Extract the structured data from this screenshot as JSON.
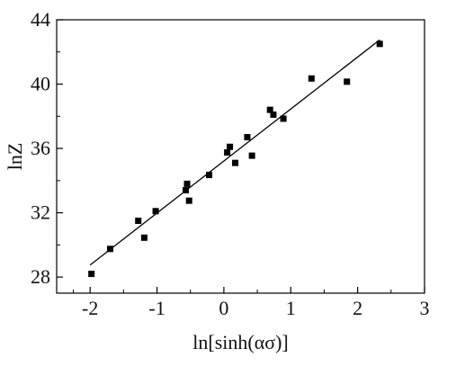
{
  "chart_data": {
    "type": "scatter",
    "xlabel": "ln[sinh(ασ)]",
    "ylabel": "lnZ",
    "xlim": [
      -2.5,
      3
    ],
    "ylim": [
      27,
      44
    ],
    "x_ticks": [
      -2,
      -1,
      0,
      1,
      2,
      3
    ],
    "x_tick_labels": [
      "-2",
      "-1",
      "0",
      "1",
      "2",
      "3"
    ],
    "y_ticks": [
      28,
      32,
      36,
      40,
      44
    ],
    "y_tick_labels": [
      "28",
      "32",
      "36",
      "40",
      "44"
    ],
    "grid": false,
    "legend": "none",
    "series": [
      {
        "marker": "square",
        "color": "#000000",
        "points": [
          {
            "x": -1.98,
            "y": 28.2
          },
          {
            "x": -1.7,
            "y": 29.75
          },
          {
            "x": -1.28,
            "y": 31.5
          },
          {
            "x": -1.19,
            "y": 30.45
          },
          {
            "x": -1.02,
            "y": 32.1
          },
          {
            "x": -0.57,
            "y": 33.4
          },
          {
            "x": -0.55,
            "y": 33.8
          },
          {
            "x": -0.52,
            "y": 32.75
          },
          {
            "x": -0.22,
            "y": 34.35
          },
          {
            "x": 0.05,
            "y": 35.75
          },
          {
            "x": 0.09,
            "y": 36.1
          },
          {
            "x": 0.17,
            "y": 35.1
          },
          {
            "x": 0.35,
            "y": 36.7
          },
          {
            "x": 0.42,
            "y": 35.55
          },
          {
            "x": 0.69,
            "y": 38.4
          },
          {
            "x": 0.74,
            "y": 38.1
          },
          {
            "x": 0.89,
            "y": 37.85
          },
          {
            "x": 1.31,
            "y": 40.35
          },
          {
            "x": 1.84,
            "y": 40.15
          },
          {
            "x": 2.33,
            "y": 42.5
          }
        ]
      }
    ],
    "fit_line": {
      "color": "#000000",
      "x": [
        -2.0,
        2.33
      ],
      "y": [
        28.75,
        42.75
      ]
    }
  }
}
